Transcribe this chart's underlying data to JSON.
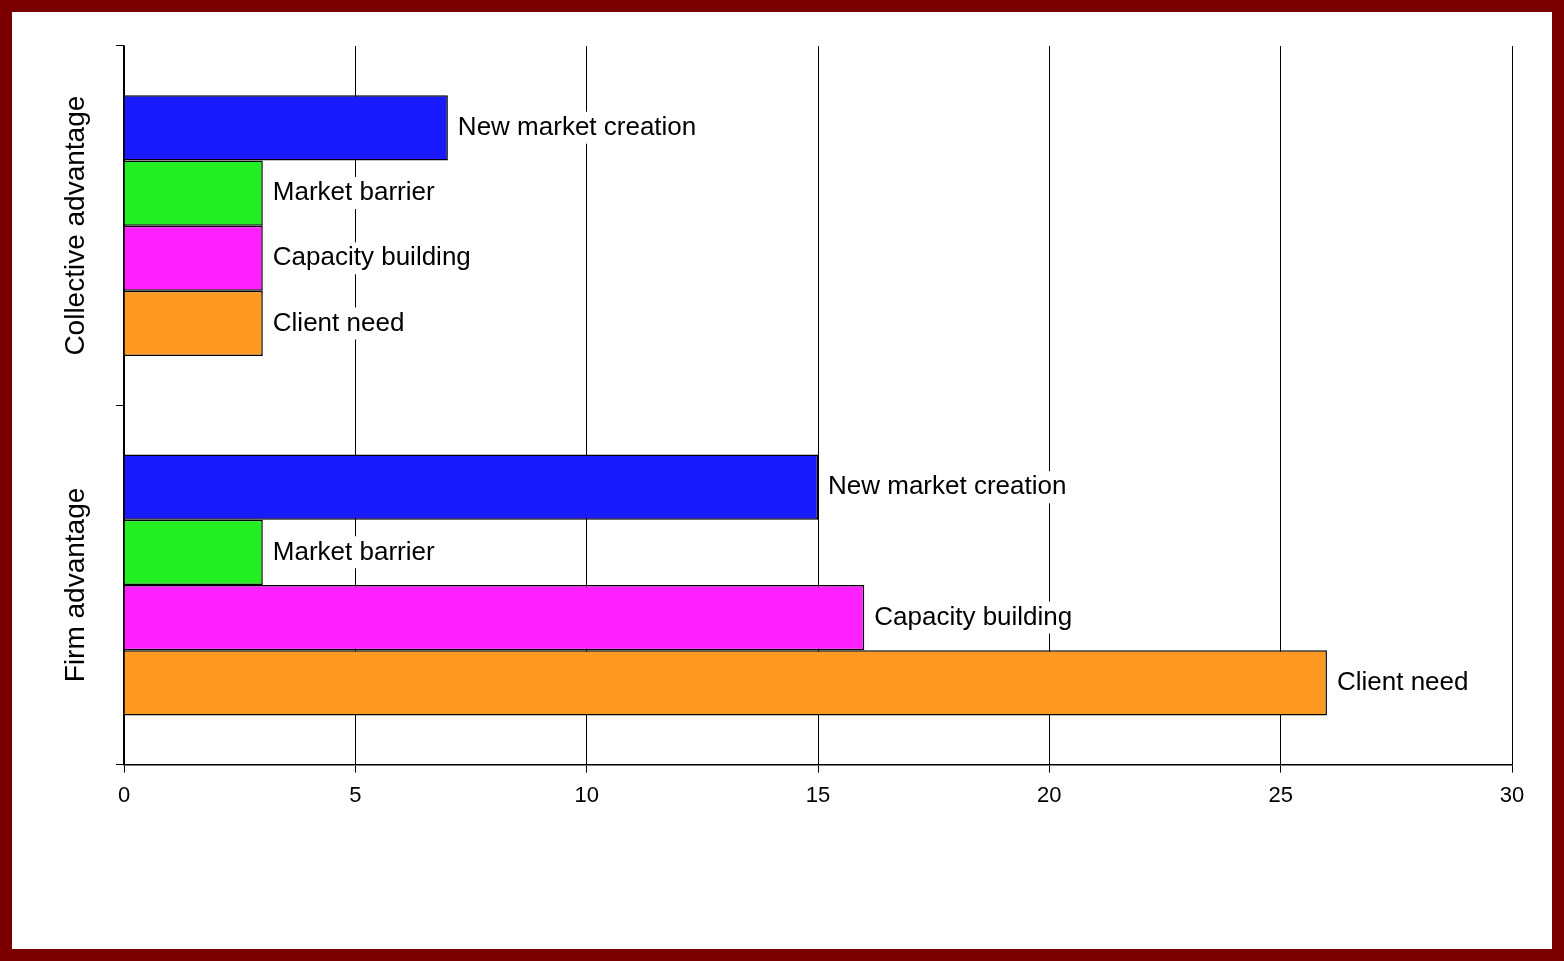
{
  "chart_data": {
    "type": "bar",
    "orientation": "horizontal",
    "categories": [
      "Collective advantage",
      "Firm advantage"
    ],
    "series": [
      {
        "name": "New market creation",
        "color": "#1a1aff",
        "values": [
          7,
          15
        ]
      },
      {
        "name": "Market barrier",
        "color": "#22ee22",
        "values": [
          3,
          3
        ]
      },
      {
        "name": "Capacity building",
        "color": "#ff22ff",
        "values": [
          3,
          16
        ]
      },
      {
        "name": "Client need",
        "color": "#ff9922",
        "values": [
          3,
          26
        ]
      }
    ],
    "xlim": [
      0,
      30
    ],
    "xticks": [
      0,
      5,
      10,
      15,
      20,
      25,
      30
    ],
    "grid": "x",
    "legend": false
  }
}
